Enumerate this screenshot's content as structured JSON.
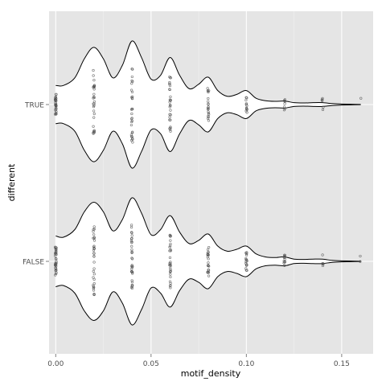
{
  "chart_data": {
    "type": "violin",
    "title": "",
    "xlabel": "motif_density",
    "ylabel": "different",
    "xlim": [
      -0.0035,
      0.1665
    ],
    "x_ticks": [
      0.0,
      0.05,
      0.1,
      0.15
    ],
    "x_tick_labels": [
      "0.00",
      "0.05",
      "0.10",
      "0.15"
    ],
    "categories": [
      "TRUE",
      "FALSE"
    ],
    "grid": true,
    "legend": "none",
    "colors": {
      "panel_background": "#e5e5e5",
      "grid_major": "#ffffff",
      "grid_minor": "#f2f2f2",
      "violin_fill": "#ffffff",
      "violin_outline": "#000000",
      "points": "#4d4d4d"
    },
    "violins": [
      {
        "category": "TRUE",
        "range": [
          0.0,
          0.16
        ],
        "density": [
          [
            0.0,
            0.3
          ],
          [
            0.004,
            0.3
          ],
          [
            0.01,
            0.42
          ],
          [
            0.015,
            0.72
          ],
          [
            0.02,
            0.9
          ],
          [
            0.025,
            0.72
          ],
          [
            0.03,
            0.42
          ],
          [
            0.035,
            0.62
          ],
          [
            0.04,
            1.0
          ],
          [
            0.045,
            0.74
          ],
          [
            0.05,
            0.4
          ],
          [
            0.055,
            0.46
          ],
          [
            0.06,
            0.74
          ],
          [
            0.065,
            0.46
          ],
          [
            0.07,
            0.25
          ],
          [
            0.075,
            0.32
          ],
          [
            0.08,
            0.43
          ],
          [
            0.085,
            0.22
          ],
          [
            0.09,
            0.13
          ],
          [
            0.095,
            0.16
          ],
          [
            0.1,
            0.22
          ],
          [
            0.105,
            0.1
          ],
          [
            0.11,
            0.06
          ],
          [
            0.115,
            0.05
          ],
          [
            0.12,
            0.055
          ],
          [
            0.125,
            0.03
          ],
          [
            0.13,
            0.025
          ],
          [
            0.135,
            0.03
          ],
          [
            0.14,
            0.03
          ],
          [
            0.145,
            0.015
          ],
          [
            0.15,
            0.008
          ],
          [
            0.155,
            0.004
          ],
          [
            0.16,
            0.002
          ]
        ],
        "points": [
          {
            "x": 0.0,
            "n": 30
          },
          {
            "x": 0.02,
            "n": 30
          },
          {
            "x": 0.04,
            "n": 30
          },
          {
            "x": 0.06,
            "n": 28
          },
          {
            "x": 0.08,
            "n": 20
          },
          {
            "x": 0.1,
            "n": 12
          },
          {
            "x": 0.12,
            "n": 8
          },
          {
            "x": 0.14,
            "n": 6
          },
          {
            "x": 0.16,
            "n": 1
          }
        ]
      },
      {
        "category": "FALSE",
        "range": [
          0.0,
          0.16
        ],
        "density": [
          [
            0.0,
            0.4
          ],
          [
            0.004,
            0.38
          ],
          [
            0.01,
            0.5
          ],
          [
            0.015,
            0.78
          ],
          [
            0.02,
            0.93
          ],
          [
            0.025,
            0.78
          ],
          [
            0.03,
            0.48
          ],
          [
            0.035,
            0.66
          ],
          [
            0.04,
            1.0
          ],
          [
            0.045,
            0.76
          ],
          [
            0.05,
            0.42
          ],
          [
            0.055,
            0.5
          ],
          [
            0.06,
            0.72
          ],
          [
            0.065,
            0.46
          ],
          [
            0.07,
            0.28
          ],
          [
            0.075,
            0.33
          ],
          [
            0.08,
            0.43
          ],
          [
            0.085,
            0.24
          ],
          [
            0.09,
            0.16
          ],
          [
            0.095,
            0.19
          ],
          [
            0.1,
            0.24
          ],
          [
            0.105,
            0.12
          ],
          [
            0.11,
            0.07
          ],
          [
            0.115,
            0.06
          ],
          [
            0.12,
            0.07
          ],
          [
            0.125,
            0.035
          ],
          [
            0.13,
            0.03
          ],
          [
            0.135,
            0.035
          ],
          [
            0.14,
            0.035
          ],
          [
            0.145,
            0.015
          ],
          [
            0.15,
            0.008
          ],
          [
            0.155,
            0.004
          ],
          [
            0.16,
            0.002
          ]
        ],
        "points": [
          {
            "x": 0.0,
            "n": 34
          },
          {
            "x": 0.02,
            "n": 34
          },
          {
            "x": 0.04,
            "n": 34
          },
          {
            "x": 0.06,
            "n": 30
          },
          {
            "x": 0.08,
            "n": 22
          },
          {
            "x": 0.1,
            "n": 16
          },
          {
            "x": 0.12,
            "n": 12
          },
          {
            "x": 0.14,
            "n": 5
          },
          {
            "x": 0.16,
            "n": 2
          }
        ]
      }
    ]
  }
}
